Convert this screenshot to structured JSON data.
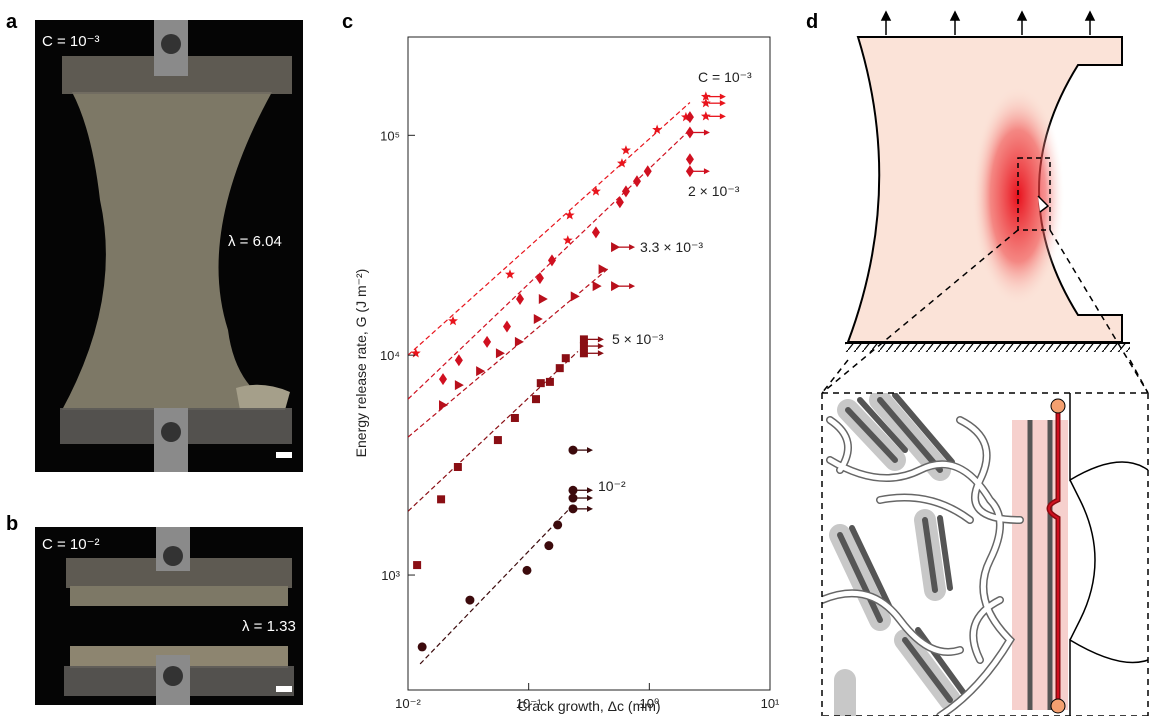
{
  "panels": {
    "a": {
      "letter": "a",
      "concentration": "C = 10⁻³",
      "stretch": "λ = 6.04"
    },
    "b": {
      "letter": "b",
      "concentration": "C = 10⁻²",
      "stretch": "λ = 1.33"
    },
    "c": {
      "letter": "c"
    },
    "d": {
      "letter": "d"
    }
  },
  "chart_data": {
    "type": "scatter",
    "xlabel": "Crack growth, Δc (mm)",
    "ylabel": "Energy release rate, G (J m⁻²)",
    "log_x": true,
    "log_y": true,
    "xlim": [
      0.01,
      10
    ],
    "ylim": [
      300,
      280000
    ],
    "xticks": [
      {
        "value": 0.01,
        "label": "10⁻²"
      },
      {
        "value": 0.1,
        "label": "10⁻¹"
      },
      {
        "value": 1,
        "label": "10⁰"
      },
      {
        "value": 10,
        "label": "10¹"
      }
    ],
    "yticks": [
      {
        "value": 1000,
        "label": "10³"
      },
      {
        "value": 10000,
        "label": "10⁴"
      },
      {
        "value": 100000,
        "label": "10⁵"
      }
    ],
    "series": [
      {
        "name": "C = 10⁻³",
        "color": "#e8141c",
        "marker": "star",
        "x": [
          0.0116,
          0.0236,
          0.07,
          0.211,
          0.219,
          0.361,
          0.593,
          0.64,
          1.16,
          2.01,
          2.94,
          2.94,
          2.94
        ],
        "values": [
          10200,
          14300,
          23300,
          33300,
          43300,
          55600,
          74600,
          85500,
          106000,
          121000,
          150000,
          140000,
          122000
        ],
        "runout": [
          false,
          false,
          false,
          false,
          false,
          false,
          false,
          false,
          false,
          false,
          true,
          true,
          true
        ],
        "fit": {
          "x": [
            0.01,
            2.17
          ],
          "values": [
            10000,
            141000
          ]
        }
      },
      {
        "name": "2 × 10⁻³",
        "color": "#d01020",
        "marker": "diamond",
        "x": [
          0.0195,
          0.0264,
          0.0452,
          0.0661,
          0.0848,
          0.124,
          0.156,
          0.361,
          0.57,
          0.64,
          0.79,
          0.97,
          2.17,
          2.17,
          2.17,
          2.17
        ],
        "values": [
          7780,
          9480,
          11500,
          13500,
          18000,
          22400,
          27000,
          36200,
          49600,
          55600,
          61800,
          68600,
          121000,
          103000,
          77800,
          68600
        ],
        "runout": [
          false,
          false,
          false,
          false,
          false,
          false,
          false,
          false,
          false,
          false,
          false,
          false,
          false,
          true,
          false,
          true
        ],
        "fit": {
          "x": [
            0.01,
            2.17
          ],
          "values": [
            6310,
            106000
          ]
        }
      },
      {
        "name": "3.3 × 10⁻³",
        "color": "#b8101c",
        "marker": "triangle",
        "x": [
          0.0195,
          0.0264,
          0.0396,
          0.0578,
          0.083,
          0.119,
          0.131,
          0.241,
          0.366,
          0.41,
          0.52,
          0.52
        ],
        "values": [
          5930,
          7310,
          8460,
          10200,
          11500,
          14600,
          18000,
          18500,
          20600,
          24600,
          31000,
          20600
        ],
        "runout": [
          false,
          false,
          false,
          false,
          false,
          false,
          false,
          false,
          false,
          false,
          true,
          true
        ],
        "fit": {
          "x": [
            0.01,
            0.47
          ],
          "values": [
            4240,
            25100
          ]
        }
      },
      {
        "name": "5 × 10⁻³",
        "color": "#8a0e14",
        "marker": "square",
        "x": [
          0.0119,
          0.0188,
          0.0259,
          0.0556,
          0.0769,
          0.115,
          0.126,
          0.15,
          0.181,
          0.203,
          0.287,
          0.287,
          0.287
        ],
        "values": [
          1110,
          2210,
          3100,
          4110,
          5180,
          6310,
          7460,
          7560,
          8730,
          9690,
          11800,
          11000,
          10200
        ],
        "runout": [
          false,
          false,
          false,
          false,
          false,
          false,
          false,
          false,
          false,
          false,
          true,
          true,
          true
        ],
        "fit": {
          "x": [
            0.01,
            0.256
          ],
          "values": [
            1950,
            10400
          ]
        }
      },
      {
        "name": "10⁻²",
        "color": "#3c0a0c",
        "marker": "circle",
        "x": [
          0.0131,
          0.0326,
          0.0968,
          0.147,
          0.174,
          0.233,
          0.233,
          0.233,
          0.233
        ],
        "values": [
          471,
          769,
          1050,
          1360,
          1690,
          3700,
          2430,
          2240,
          2000
        ],
        "runout": [
          false,
          false,
          false,
          false,
          false,
          true,
          true,
          true,
          true
        ],
        "fit": {
          "x": [
            0.0126,
            0.237
          ],
          "values": [
            394,
            2100
          ]
        }
      }
    ]
  }
}
